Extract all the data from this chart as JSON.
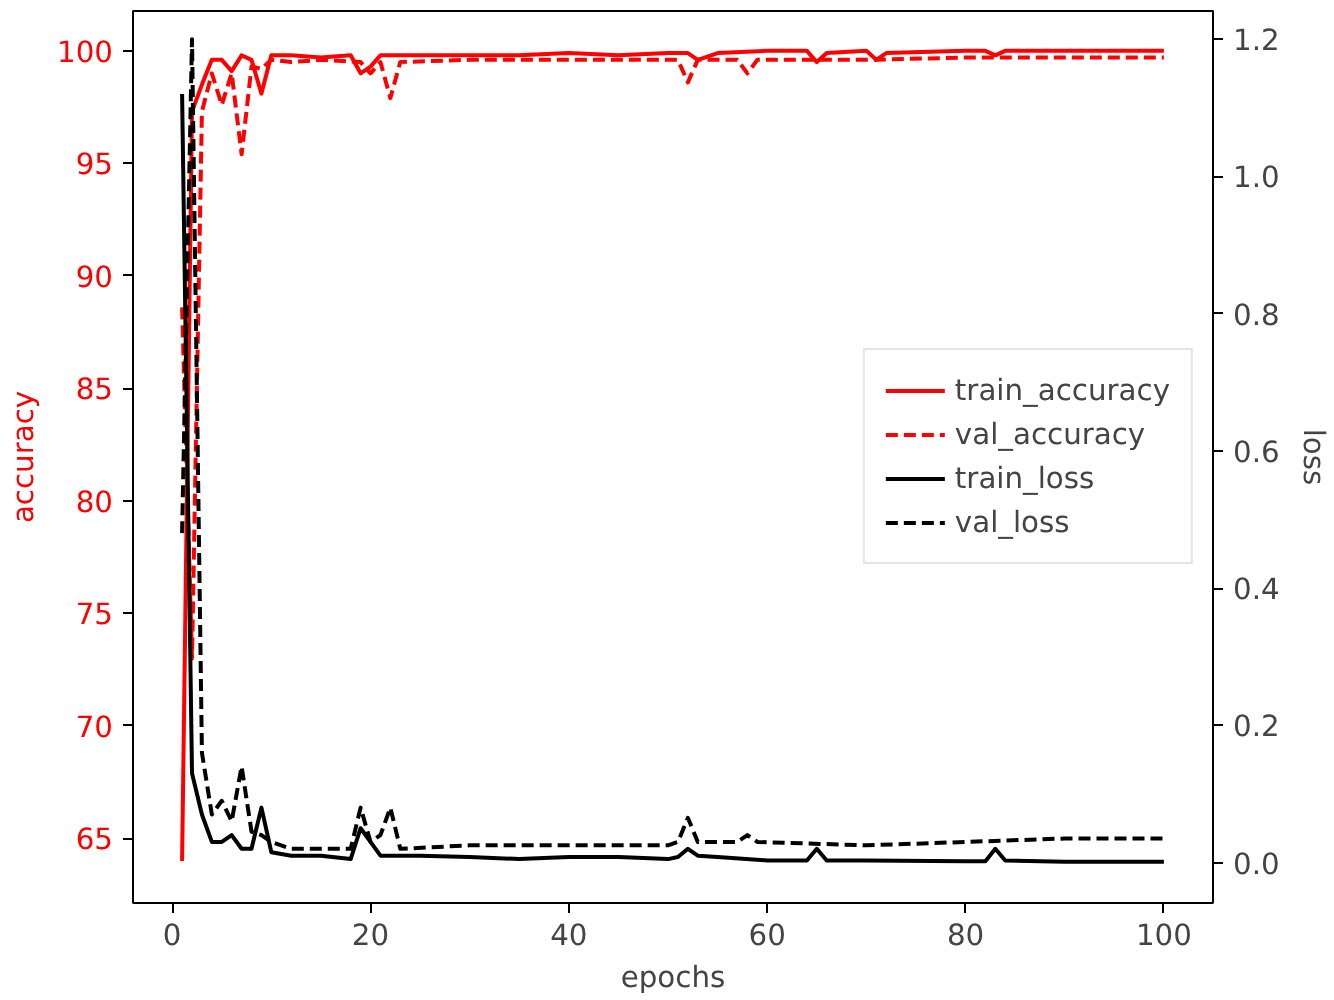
{
  "chart_data": {
    "type": "line",
    "xlabel": "epochs",
    "ylabel": "accuracy",
    "y2label": "loss",
    "xlim": [
      -3.95,
      104.95
    ],
    "xticks": [
      0,
      20,
      40,
      60,
      80,
      100
    ],
    "ylim": [
      62.13,
      101.77
    ],
    "yticks": [
      65,
      70,
      75,
      80,
      85,
      90,
      95,
      100
    ],
    "y2lim": [
      -0.059,
      1.241
    ],
    "y2ticks": [
      {
        "value": 0,
        "label": "0.0"
      },
      0.2,
      0.4,
      0.6,
      0.8,
      {
        "value": 1,
        "label": "1.0"
      },
      1.2
    ],
    "grid": false,
    "legend": "right",
    "marker": "none",
    "series": [
      {
        "name": "train_accuracy",
        "color": "#ff0000",
        "line_style": "solid",
        "x": [
          1,
          2,
          3,
          4,
          5,
          6,
          7,
          8,
          9,
          10,
          12,
          15,
          18,
          19,
          20,
          21,
          25,
          30,
          35,
          40,
          45,
          50,
          52,
          53,
          55,
          60,
          64,
          65,
          66,
          70,
          71,
          72,
          80,
          82,
          83,
          84,
          90,
          100
        ],
        "values": [
          64,
          97.3,
          98.5,
          99.6,
          99.6,
          99.1,
          99.8,
          99.6,
          98.1,
          99.8,
          99.8,
          99.7,
          99.8,
          99.0,
          99.3,
          99.8,
          99.8,
          99.8,
          99.8,
          99.9,
          99.8,
          99.9,
          99.9,
          99.6,
          99.9,
          100,
          100,
          99.5,
          99.9,
          100,
          99.6,
          99.9,
          100,
          100,
          99.8,
          100,
          100,
          100
        ]
      },
      {
        "name": "val_accuracy",
        "color": "#ff0000",
        "line_style": "dashed",
        "x": [
          1,
          2,
          3,
          4,
          5,
          6,
          7,
          8,
          9,
          10,
          12,
          15,
          19,
          20,
          21,
          22,
          23,
          30,
          40,
          51,
          52,
          53,
          57,
          58,
          59,
          70,
          80,
          90,
          100
        ],
        "values": [
          88.6,
          73,
          97.3,
          99.0,
          97.6,
          99.0,
          95.4,
          99.3,
          99.2,
          99.6,
          99.5,
          99.6,
          99.5,
          99.0,
          99.5,
          97.9,
          99.5,
          99.6,
          99.6,
          99.6,
          98.6,
          99.6,
          99.6,
          99.0,
          99.6,
          99.6,
          99.7,
          99.7,
          99.7
        ]
      },
      {
        "name": "train_loss",
        "color": "#000000",
        "line_style": "solid",
        "axis": "y2",
        "x": [
          1,
          2,
          3,
          4,
          5,
          6,
          7,
          8,
          9,
          10,
          12,
          15,
          18,
          19,
          20,
          21,
          25,
          30,
          35,
          40,
          45,
          50,
          51,
          52,
          53,
          55,
          60,
          64,
          65,
          66,
          70,
          80,
          82,
          83,
          84,
          90,
          100
        ],
        "values": [
          1.12,
          0.13,
          0.07,
          0.03,
          0.03,
          0.04,
          0.02,
          0.02,
          0.08,
          0.015,
          0.01,
          0.01,
          0.005,
          0.05,
          0.03,
          0.01,
          0.01,
          0.008,
          0.005,
          0.008,
          0.008,
          0.005,
          0.008,
          0.02,
          0.01,
          0.008,
          0.003,
          0.003,
          0.02,
          0.003,
          0.003,
          0.002,
          0.002,
          0.02,
          0.003,
          0.001,
          0.001
        ]
      },
      {
        "name": "val_loss",
        "color": "#000000",
        "line_style": "dashed",
        "axis": "y2",
        "x": [
          1,
          2,
          3,
          4,
          5,
          6,
          7,
          8,
          9,
          10,
          12,
          15,
          18,
          19,
          20,
          21,
          22,
          23,
          30,
          40,
          50,
          51,
          52,
          53,
          57,
          58,
          59,
          70,
          80,
          90,
          100
        ],
        "values": [
          0.48,
          1.2,
          0.16,
          0.07,
          0.09,
          0.06,
          0.14,
          0.045,
          0.04,
          0.03,
          0.02,
          0.02,
          0.02,
          0.08,
          0.03,
          0.04,
          0.08,
          0.02,
          0.025,
          0.025,
          0.025,
          0.03,
          0.065,
          0.03,
          0.03,
          0.04,
          0.03,
          0.025,
          0.03,
          0.035,
          0.035
        ]
      }
    ]
  }
}
